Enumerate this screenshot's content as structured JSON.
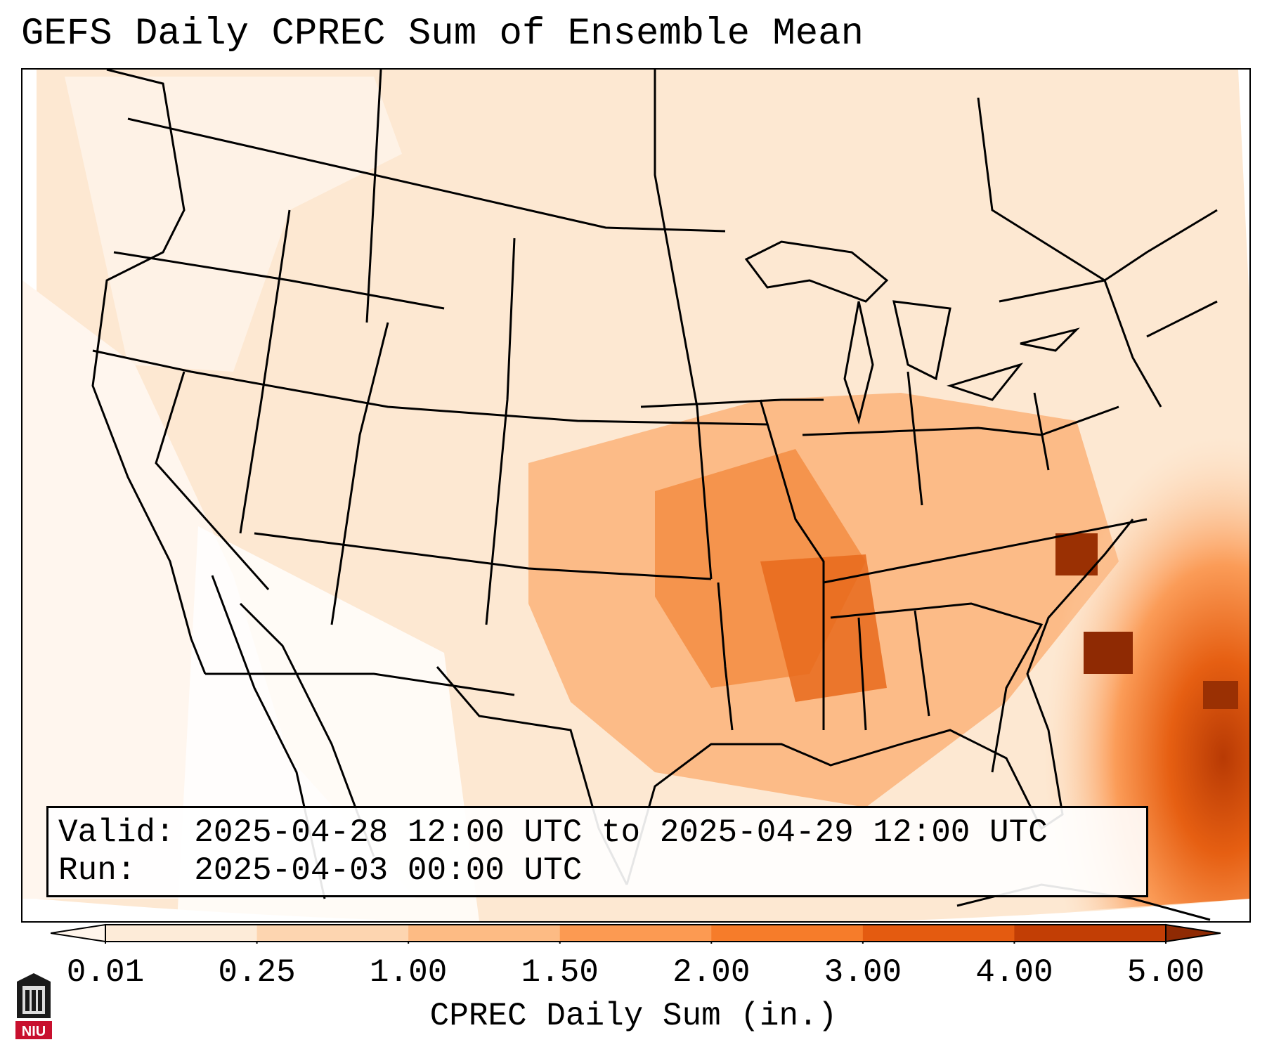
{
  "title": "GEFS Daily CPREC Sum of Ensemble Mean",
  "info": {
    "valid_line": "Valid: 2025-04-28 12:00 UTC to 2025-04-29 12:00 UTC",
    "run_line": "Run:   2025-04-03 00:00 UTC"
  },
  "colorbar": {
    "label": "CPREC Daily Sum (in.)",
    "ticks": [
      "0.01",
      "0.25",
      "1.00",
      "1.50",
      "2.00",
      "3.00",
      "4.00",
      "5.00"
    ],
    "colors": [
      "#fdebd8",
      "#fdd5b0",
      "#fdbb84",
      "#fc9a52",
      "#f67c2a",
      "#e45b10",
      "#c23e05",
      "#8f2a03"
    ]
  },
  "logo": {
    "text": "NIU"
  }
}
